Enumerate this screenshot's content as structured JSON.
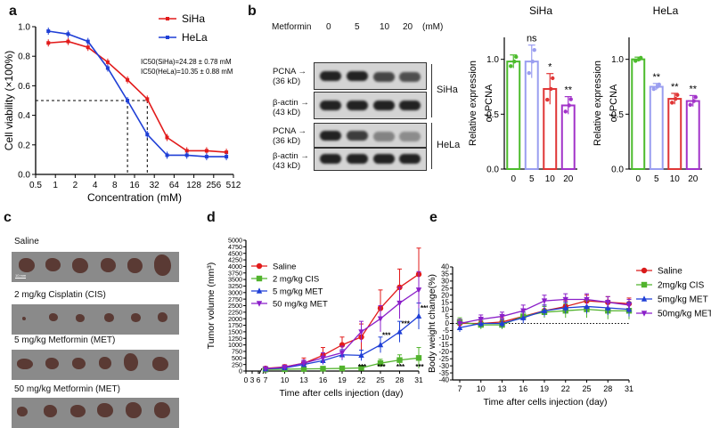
{
  "panels": {
    "a": "a",
    "b": "b",
    "c": "c",
    "d": "d",
    "e": "e"
  },
  "panel_a": {
    "chart_data": {
      "type": "line",
      "xlabel": "Concentration (mM)",
      "ylabel": "Cell viability (×100%)",
      "x_ticks": [
        "0.5",
        "1",
        "2",
        "4",
        "8",
        "16",
        "32",
        "64",
        "128",
        "256",
        "512"
      ],
      "y_ticks": [
        "0.0",
        "0.2",
        "0.4",
        "0.6",
        "0.8",
        "1.0"
      ],
      "ylim": [
        0,
        1.0
      ],
      "series": [
        {
          "name": "SiHa",
          "color": "#e21b1b",
          "x": [
            0.78,
            1.56,
            3.13,
            6.25,
            12.5,
            25,
            50,
            100,
            200,
            400
          ],
          "y": [
            0.89,
            0.9,
            0.86,
            0.76,
            0.64,
            0.51,
            0.25,
            0.16,
            0.16,
            0.15
          ]
        },
        {
          "name": "HeLa",
          "color": "#1f3fd6",
          "x": [
            0.78,
            1.56,
            3.13,
            6.25,
            12.5,
            25,
            50,
            100,
            200,
            400
          ],
          "y": [
            0.97,
            0.95,
            0.9,
            0.72,
            0.5,
            0.27,
            0.13,
            0.13,
            0.12,
            0.12
          ]
        }
      ],
      "annotations": [
        "IC50(SiHa)=24.28 ± 0.78 mM",
        "IC50(HeLa)=10.35 ± 0.88 mM"
      ]
    }
  },
  "panel_b": {
    "metformin_label": "Metformin",
    "doses": [
      "0",
      "5",
      "10",
      "20"
    ],
    "unit": "(mM)",
    "rows": [
      {
        "label": "PCNA",
        "sub": "(36 kD)"
      },
      {
        "label": "β-actin",
        "sub": "(43 kD)"
      },
      {
        "label": "PCNA",
        "sub": "(36 kD)"
      },
      {
        "label": "β-actin",
        "sub": "(43 kD)"
      }
    ],
    "cell_lines": [
      "SiHa",
      "HeLa"
    ],
    "charts": [
      {
        "title": "SiHa",
        "type": "bar",
        "ylabel": "Relative expression of PCNA",
        "categories": [
          "0",
          "5",
          "10",
          "20"
        ],
        "values": [
          0.98,
          0.98,
          0.73,
          0.58
        ],
        "errors": [
          0.06,
          0.15,
          0.14,
          0.08
        ],
        "sig": [
          "",
          "ns",
          "*",
          "**"
        ],
        "y_ticks": [
          "0.0",
          "0.5",
          "1.0"
        ],
        "ylim": [
          0,
          1.2
        ],
        "colors": [
          "#4cbb2c",
          "#9a9ef0",
          "#e03535",
          "#a233c9"
        ]
      },
      {
        "title": "HeLa",
        "type": "bar",
        "ylabel": "Relative expression of PCNA",
        "categories": [
          "0",
          "5",
          "10",
          "20"
        ],
        "values": [
          1.0,
          0.75,
          0.64,
          0.62
        ],
        "errors": [
          0.02,
          0.03,
          0.05,
          0.05
        ],
        "sig": [
          "",
          "**",
          "**",
          "**"
        ],
        "y_ticks": [
          "0.0",
          "0.5",
          "1.0"
        ],
        "ylim": [
          0,
          1.2
        ],
        "colors": [
          "#4cbb2c",
          "#9a9ef0",
          "#e03535",
          "#a233c9"
        ]
      }
    ]
  },
  "panel_c": {
    "groups": [
      "Saline",
      "2 mg/kg Cisplatin (CIS)",
      "5 mg/kg Metformin (MET)",
      "50 mg/kg Metformin (MET)"
    ],
    "scale": "10 mm"
  },
  "panel_d": {
    "chart_data": {
      "type": "line",
      "xlabel": "Time after cells injection (day)",
      "ylabel": "Tumor volume (mm³)",
      "x_ticks": [
        "0",
        "3",
        "6",
        "7",
        "10",
        "13",
        "16",
        "19",
        "22",
        "25",
        "28",
        "31"
      ],
      "y_ticks": [
        "0",
        "250",
        "500",
        "750",
        "1000",
        "1250",
        "1500",
        "1750",
        "2000",
        "2250",
        "2500",
        "2750",
        "3000",
        "3250",
        "3500",
        "3750",
        "4000",
        "4250",
        "4500",
        "4750",
        "5000"
      ],
      "ylim": [
        0,
        5000
      ],
      "x": [
        7,
        10,
        13,
        16,
        19,
        22,
        25,
        28,
        31
      ],
      "series": [
        {
          "name": "Saline",
          "color": "#e21b1b",
          "values": [
            100,
            160,
            300,
            600,
            1000,
            1300,
            2400,
            3200,
            3700
          ],
          "errors": [
            40,
            80,
            200,
            300,
            300,
            500,
            700,
            700,
            1000
          ]
        },
        {
          "name": "2 mg/kg CIS",
          "color": "#52b32d",
          "values": [
            60,
            70,
            80,
            90,
            100,
            120,
            300,
            420,
            500
          ],
          "errors": [
            20,
            20,
            20,
            20,
            30,
            50,
            150,
            200,
            400
          ]
        },
        {
          "name": "5 mg/kg MET",
          "color": "#1f3fd6",
          "values": [
            80,
            120,
            250,
            400,
            620,
            600,
            1000,
            1500,
            2100
          ],
          "errors": [
            30,
            50,
            100,
            150,
            200,
            200,
            300,
            400,
            500
          ]
        },
        {
          "name": "50 mg/kg MET",
          "color": "#8b1fc9",
          "values": [
            90,
            150,
            300,
            500,
            700,
            1500,
            2000,
            2600,
            3100
          ],
          "errors": [
            30,
            60,
            120,
            200,
            250,
            400,
            500,
            600,
            700
          ]
        }
      ],
      "sig_labels": [
        "***",
        "***",
        "***",
        "***",
        "***",
        "***",
        "***",
        "**",
        "***"
      ]
    }
  },
  "panel_e": {
    "chart_data": {
      "type": "line",
      "xlabel": "Time after cells injection (day)",
      "ylabel": "Body weight change(%)",
      "x_ticks": [
        "7",
        "10",
        "13",
        "16",
        "19",
        "22",
        "25",
        "28",
        "31"
      ],
      "y_ticks": [
        "-40",
        "-35",
        "-30",
        "-25",
        "-20",
        "-15",
        "-10",
        "-5",
        "0",
        "5",
        "10",
        "15",
        "20",
        "25",
        "30",
        "35",
        "40"
      ],
      "ylim": [
        -40,
        40
      ],
      "x": [
        7,
        10,
        13,
        16,
        19,
        22,
        25,
        28,
        31
      ],
      "series": [
        {
          "name": "Saline",
          "color": "#d91a1a",
          "values": [
            0,
            0,
            1,
            5,
            9,
            12,
            16,
            15,
            14
          ],
          "errors": [
            2,
            2,
            3,
            3,
            4,
            4,
            4,
            4,
            4
          ]
        },
        {
          "name": "2mg/kg CIS",
          "color": "#52b32d",
          "values": [
            1,
            -1,
            -1,
            5,
            8,
            9,
            10,
            9,
            9
          ],
          "errors": [
            3,
            3,
            3,
            3,
            4,
            5,
            6,
            6,
            6
          ]
        },
        {
          "name": "5mg/kg MET",
          "color": "#1f3fd6",
          "values": [
            -3,
            0,
            0,
            4,
            9,
            11,
            12,
            11,
            10
          ],
          "errors": [
            3,
            3,
            3,
            4,
            4,
            4,
            5,
            5,
            5
          ]
        },
        {
          "name": "50mg/kg MET",
          "color": "#8b1fc9",
          "values": [
            0,
            3,
            5,
            9,
            16,
            17,
            17,
            15,
            13
          ],
          "errors": [
            3,
            3,
            3,
            4,
            4,
            4,
            4,
            4,
            4
          ]
        }
      ]
    }
  }
}
